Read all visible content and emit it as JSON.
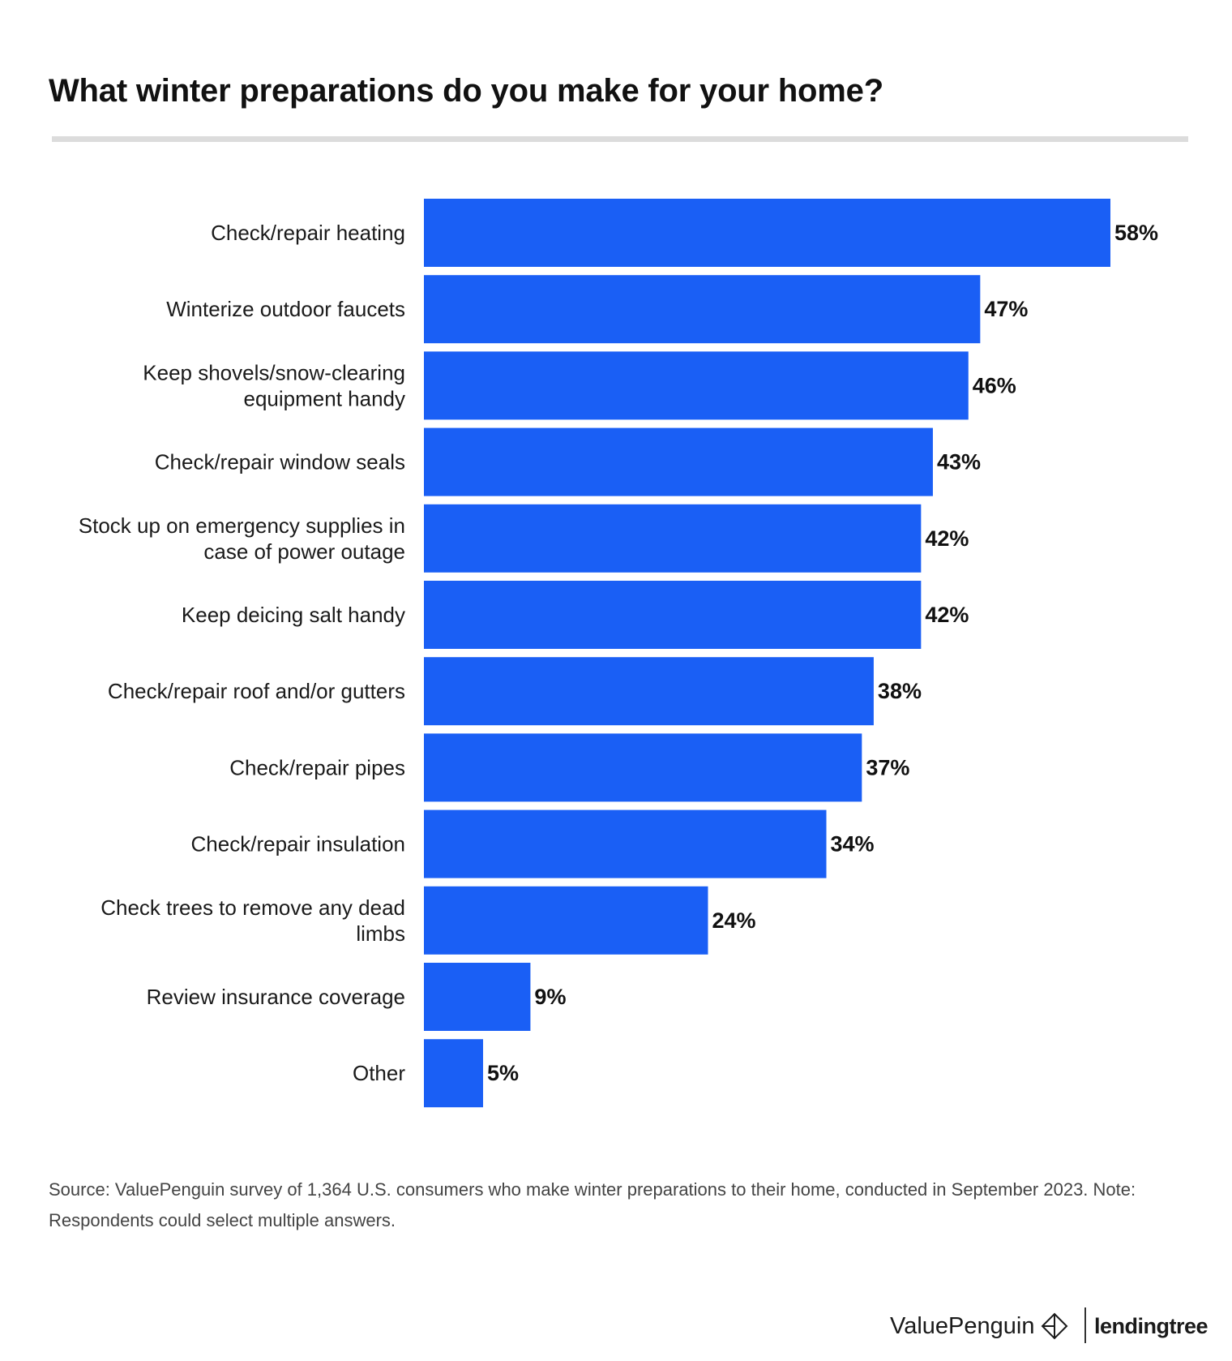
{
  "title": "What winter preparations do you make for your home?",
  "chart_data": {
    "type": "bar",
    "orientation": "horizontal",
    "title": "What winter preparations do you make for your home?",
    "categories": [
      "Check/repair heating",
      "Winterize outdoor faucets",
      "Keep shovels/snow-clearing equipment handy",
      "Check/repair window seals",
      "Stock up on emergency supplies in case of power outage",
      "Keep deicing salt handy",
      "Check/repair roof and/or gutters",
      "Check/repair pipes",
      "Check/repair insulation",
      "Check trees to remove any dead limbs",
      "Review insurance coverage",
      "Other"
    ],
    "label_lines": [
      [
        "Check/repair heating"
      ],
      [
        "Winterize outdoor faucets"
      ],
      [
        "Keep shovels/snow-clearing",
        "equipment handy"
      ],
      [
        "Check/repair window seals"
      ],
      [
        "Stock up on emergency supplies in",
        "case of power outage"
      ],
      [
        "Keep deicing salt handy"
      ],
      [
        "Check/repair roof and/or gutters"
      ],
      [
        "Check/repair pipes"
      ],
      [
        "Check/repair insulation"
      ],
      [
        "Check trees to remove any dead",
        "limbs"
      ],
      [
        "Review insurance coverage"
      ],
      [
        "Other"
      ]
    ],
    "values": [
      58,
      47,
      46,
      43,
      42,
      42,
      38,
      37,
      34,
      24,
      9,
      5
    ],
    "value_labels": [
      "58%",
      "47%",
      "46%",
      "43%",
      "42%",
      "42%",
      "38%",
      "37%",
      "34%",
      "24%",
      "9%",
      "5%"
    ],
    "unit": "%",
    "xlim": [
      0,
      58
    ],
    "xlabel": "",
    "ylabel": "",
    "grid": false,
    "legend": "none",
    "bar_color": "#1a5ff5"
  },
  "source_note": "Source: ValuePenguin survey of 1,364 U.S. consumers who make winter preparations to their home, conducted in September 2023. Note: Respondents could select multiple answers.",
  "brand": {
    "valuepenguin": "ValuePenguin",
    "lendingtree": "lendingtree"
  }
}
